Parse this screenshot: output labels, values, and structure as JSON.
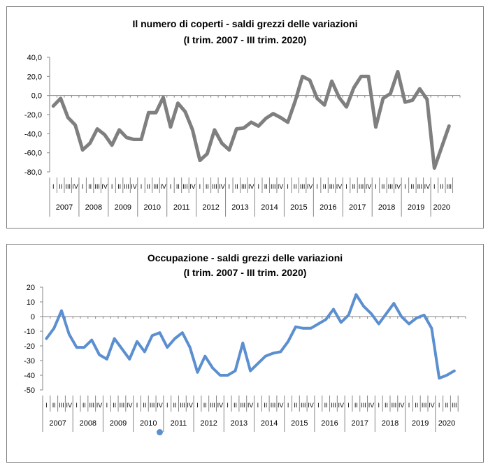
{
  "chart_data": [
    {
      "type": "line",
      "title": "Il numero di coperti - saldi grezzi delle variazioni",
      "subtitle": "(I trim. 2007 - III trim. 2020)",
      "color": "#7f7f7f",
      "ylim": [
        -80,
        40
      ],
      "yticks": [
        "40,0",
        "20,0",
        "0,0",
        "-20,0",
        "-40,0",
        "-60,0",
        "-80,0"
      ],
      "ytick_values": [
        40,
        20,
        0,
        -20,
        -40,
        -60,
        -80
      ],
      "years": [
        "2007",
        "2008",
        "2009",
        "2010",
        "2011",
        "2012",
        "2013",
        "2014",
        "2015",
        "2016",
        "2017",
        "2018",
        "2019",
        "2020"
      ],
      "quarters": [
        "I",
        "II",
        "III",
        "IV"
      ],
      "values": [
        -11,
        -3,
        -23,
        -31,
        -57,
        -50,
        -35,
        -41,
        -52,
        -36,
        -44,
        -46,
        -46,
        -18,
        -18,
        -2,
        -33,
        -8,
        -17,
        -36,
        -68,
        -61,
        -36,
        -50,
        -57,
        -35,
        -34,
        -28,
        -32,
        -24,
        -19,
        -23,
        -28,
        -6,
        20,
        16,
        -3,
        -10,
        15,
        -2,
        -12,
        8,
        20,
        20,
        -33,
        -3,
        2,
        25,
        -7,
        -5,
        7,
        -4,
        -76,
        -54,
        -32
      ]
    },
    {
      "type": "line",
      "title": "Occupazione - saldi grezzi delle variazioni",
      "subtitle": "(I trim. 2007 - III trim. 2020)",
      "color": "#5b8fd0",
      "ylim": [
        -50,
        20
      ],
      "yticks": [
        "20",
        "10",
        "0",
        "-10",
        "-20",
        "-30",
        "-40",
        "-50"
      ],
      "ytick_values": [
        20,
        10,
        0,
        -10,
        -20,
        -30,
        -40,
        -50
      ],
      "years": [
        "2007",
        "2008",
        "2009",
        "2010",
        "2011",
        "2012",
        "2013",
        "2014",
        "2015",
        "2016",
        "2017",
        "2018",
        "2019",
        "2020"
      ],
      "quarters": [
        "I",
        "II",
        "III",
        "IV"
      ],
      "values": [
        -15,
        -8,
        4,
        -12,
        -21,
        -21,
        -16,
        -26,
        -29,
        -15,
        -22,
        -29,
        -17,
        -24,
        -13,
        -11,
        -21,
        -15,
        -11,
        -21,
        -38,
        -27,
        -35,
        -40,
        -40,
        -37,
        -18,
        -37,
        -32,
        -27,
        -25,
        -24,
        -17,
        -7,
        -8,
        -8,
        -5,
        -2,
        5,
        -4,
        1,
        15,
        7,
        2,
        -5,
        2,
        9,
        0,
        -5,
        -1,
        1,
        -8,
        -42,
        -40,
        -37
      ]
    }
  ]
}
